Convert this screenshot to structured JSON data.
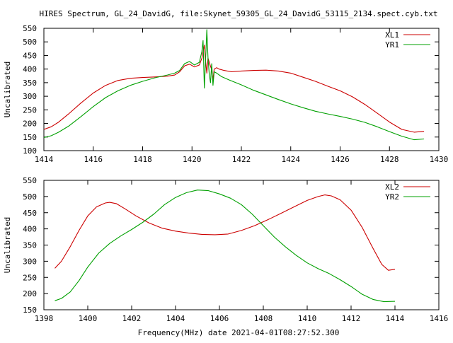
{
  "figure": {
    "title": "HIRES Spectrum, GL_24_DavidG, file:Skynet_59305_GL_24_DavidG_53115_2134.spect.cyb.txt",
    "xlabel": "Frequency(MHz) date 2021-04-01T08:27:52.300"
  },
  "colors": {
    "red": "#cc0000",
    "green": "#00a000",
    "axis": "#000000",
    "background": "#ffffff"
  },
  "chart_data": [
    {
      "type": "line",
      "title": "",
      "xlabel": "",
      "ylabel": "Uncalibrated",
      "xlim": [
        1414,
        1430
      ],
      "ylim": [
        100,
        550
      ],
      "xticks": [
        1414,
        1416,
        1418,
        1420,
        1422,
        1424,
        1426,
        1428,
        1430
      ],
      "yticks": [
        100,
        150,
        200,
        250,
        300,
        350,
        400,
        450,
        500,
        550
      ],
      "grid": false,
      "legend_position": "top-right",
      "series": [
        {
          "name": "XL1",
          "color": "#cc0000",
          "x": [
            1414.0,
            1414.3,
            1414.6,
            1415.0,
            1415.5,
            1416.0,
            1416.5,
            1417.0,
            1417.5,
            1418.0,
            1418.5,
            1419.0,
            1419.3,
            1419.5,
            1419.7,
            1419.9,
            1420.1,
            1420.3,
            1420.4,
            1420.5,
            1420.55,
            1420.6,
            1420.65,
            1420.75,
            1420.8,
            1420.85,
            1420.9,
            1421.0,
            1421.1,
            1421.3,
            1421.6,
            1422.0,
            1422.5,
            1423.0,
            1423.5,
            1424.0,
            1424.5,
            1425.0,
            1425.5,
            1426.0,
            1426.5,
            1427.0,
            1427.5,
            1428.0,
            1428.5,
            1429.0,
            1429.4
          ],
          "values": [
            178,
            188,
            205,
            235,
            275,
            312,
            340,
            358,
            366,
            369,
            371,
            374,
            378,
            390,
            412,
            418,
            408,
            415,
            440,
            488,
            430,
            385,
            440,
            410,
            398,
            360,
            400,
            405,
            400,
            395,
            390,
            393,
            395,
            396,
            393,
            385,
            370,
            355,
            337,
            320,
            298,
            270,
            238,
            205,
            178,
            168,
            171
          ]
        },
        {
          "name": "YR1",
          "color": "#00a000",
          "x": [
            1414.0,
            1414.3,
            1414.6,
            1415.0,
            1415.5,
            1416.0,
            1416.5,
            1417.0,
            1417.5,
            1418.0,
            1418.5,
            1419.0,
            1419.3,
            1419.5,
            1419.7,
            1419.9,
            1420.1,
            1420.3,
            1420.4,
            1420.45,
            1420.5,
            1420.55,
            1420.6,
            1420.65,
            1420.7,
            1420.75,
            1420.8,
            1420.85,
            1420.9,
            1421.0,
            1421.2,
            1421.5,
            1422.0,
            1422.5,
            1423.0,
            1423.5,
            1424.0,
            1424.5,
            1425.0,
            1425.5,
            1426.0,
            1426.5,
            1427.0,
            1427.5,
            1428.0,
            1428.5,
            1429.0,
            1429.4
          ],
          "values": [
            148,
            155,
            168,
            190,
            225,
            262,
            295,
            320,
            340,
            355,
            368,
            378,
            385,
            395,
            420,
            428,
            415,
            425,
            465,
            505,
            330,
            430,
            545,
            440,
            380,
            350,
            420,
            340,
            390,
            385,
            372,
            360,
            342,
            322,
            305,
            288,
            272,
            258,
            245,
            235,
            226,
            216,
            204,
            188,
            170,
            153,
            140,
            143
          ]
        }
      ]
    },
    {
      "type": "line",
      "title": "",
      "xlabel": "Frequency(MHz) date 2021-04-01T08:27:52.300",
      "ylabel": "Uncalibrated",
      "xlim": [
        1398,
        1416
      ],
      "ylim": [
        150,
        550
      ],
      "xticks": [
        1398,
        1400,
        1402,
        1404,
        1406,
        1408,
        1410,
        1412,
        1414,
        1416
      ],
      "yticks": [
        150,
        200,
        250,
        300,
        350,
        400,
        450,
        500,
        550
      ],
      "grid": false,
      "legend_position": "top-right",
      "series": [
        {
          "name": "XL2",
          "color": "#cc0000",
          "x": [
            1398.5,
            1398.8,
            1399.2,
            1399.6,
            1400.0,
            1400.4,
            1400.8,
            1401.0,
            1401.3,
            1401.7,
            1402.2,
            1402.8,
            1403.4,
            1404.0,
            1404.6,
            1405.2,
            1405.8,
            1406.4,
            1407.0,
            1407.6,
            1408.2,
            1408.8,
            1409.4,
            1410.0,
            1410.5,
            1410.8,
            1411.1,
            1411.5,
            1412.0,
            1412.5,
            1413.0,
            1413.4,
            1413.7,
            1414.0
          ],
          "values": [
            278,
            300,
            345,
            395,
            440,
            468,
            480,
            482,
            478,
            462,
            440,
            418,
            402,
            393,
            387,
            383,
            382,
            384,
            395,
            410,
            428,
            448,
            468,
            488,
            500,
            505,
            502,
            490,
            458,
            405,
            340,
            290,
            272,
            275
          ]
        },
        {
          "name": "YR2",
          "color": "#00a000",
          "x": [
            1398.5,
            1398.8,
            1399.2,
            1399.6,
            1400.0,
            1400.5,
            1401.0,
            1401.5,
            1402.0,
            1402.5,
            1403.0,
            1403.5,
            1404.0,
            1404.5,
            1405.0,
            1405.5,
            1406.0,
            1406.5,
            1407.0,
            1407.5,
            1408.0,
            1408.5,
            1409.0,
            1409.5,
            1410.0,
            1410.5,
            1411.0,
            1411.5,
            1412.0,
            1412.5,
            1413.0,
            1413.5,
            1414.0
          ],
          "values": [
            178,
            185,
            205,
            240,
            282,
            325,
            355,
            378,
            398,
            420,
            445,
            475,
            497,
            512,
            520,
            518,
            508,
            495,
            475,
            445,
            410,
            375,
            345,
            318,
            295,
            277,
            262,
            243,
            222,
            198,
            182,
            175,
            176
          ]
        }
      ]
    }
  ]
}
